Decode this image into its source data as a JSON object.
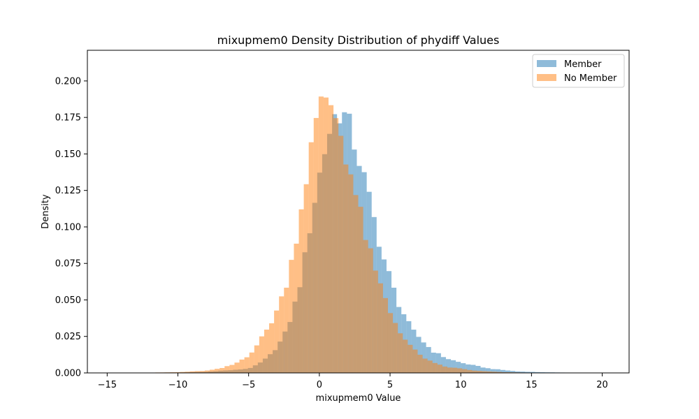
{
  "chart_data": {
    "type": "histogram",
    "title": "mixupmem0 Density Distribution of phydiff Values",
    "xlabel": "mixupmem0 Value",
    "ylabel": "Density",
    "xlim": [
      -16.4,
      21.9
    ],
    "ylim": [
      0,
      0.221
    ],
    "xticks": [
      -15,
      -10,
      -5,
      0,
      5,
      10,
      15,
      20
    ],
    "yticks": [
      0.0,
      0.025,
      0.05,
      0.075,
      0.1,
      0.125,
      0.15,
      0.175,
      0.2
    ],
    "ytick_labels": [
      "0.000",
      "0.025",
      "0.050",
      "0.075",
      "0.100",
      "0.125",
      "0.150",
      "0.175",
      "0.200"
    ],
    "grid": false,
    "legend_position": "top-right",
    "bin_width": 0.35,
    "series": [
      {
        "name": "Member",
        "color": "#1f77b4",
        "opacity": 0.5,
        "x": [
          -10,
          -8,
          -7,
          -6,
          -5,
          -4.5,
          -4,
          -3.5,
          -3,
          -2.5,
          -2,
          -1.5,
          -1,
          -0.5,
          0,
          0.5,
          1,
          1.5,
          2,
          2.5,
          3,
          3.5,
          4,
          4.5,
          5,
          5.5,
          6,
          6.5,
          7,
          7.5,
          8,
          9,
          10,
          11,
          12,
          13,
          14,
          15,
          16,
          18,
          20
        ],
        "y": [
          0.0003,
          0.0008,
          0.0015,
          0.002,
          0.003,
          0.005,
          0.008,
          0.012,
          0.018,
          0.025,
          0.038,
          0.055,
          0.08,
          0.11,
          0.135,
          0.158,
          0.175,
          0.18,
          0.172,
          0.157,
          0.14,
          0.12,
          0.1,
          0.08,
          0.065,
          0.05,
          0.04,
          0.03,
          0.025,
          0.02,
          0.015,
          0.01,
          0.007,
          0.005,
          0.003,
          0.002,
          0.001,
          0.0007,
          0.0004,
          0.0002,
          0.0001
        ]
      },
      {
        "name": "No Member",
        "color": "#ff7f0e",
        "opacity": 0.5,
        "x": [
          -12,
          -10,
          -8,
          -7,
          -6,
          -5,
          -4.5,
          -4,
          -3.5,
          -3,
          -2.5,
          -2,
          -1.5,
          -1,
          -0.5,
          0,
          0.5,
          1,
          1.5,
          2,
          2.5,
          3,
          3.5,
          4,
          4.5,
          5,
          5.5,
          6,
          6.5,
          7,
          7.5,
          8,
          9,
          10,
          11,
          12,
          13,
          15,
          18
        ],
        "y": [
          0.0002,
          0.0005,
          0.0015,
          0.003,
          0.006,
          0.012,
          0.018,
          0.025,
          0.033,
          0.043,
          0.055,
          0.075,
          0.1,
          0.13,
          0.158,
          0.18,
          0.19,
          0.182,
          0.165,
          0.145,
          0.125,
          0.105,
          0.085,
          0.068,
          0.055,
          0.042,
          0.032,
          0.024,
          0.018,
          0.013,
          0.01,
          0.007,
          0.004,
          0.003,
          0.0015,
          0.001,
          0.0005,
          0.0002,
          0.0001
        ]
      }
    ]
  }
}
